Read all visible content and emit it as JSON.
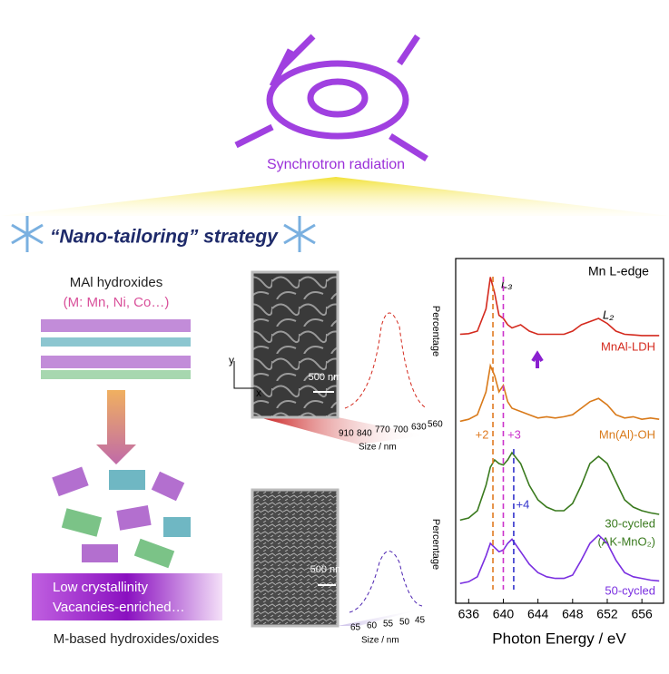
{
  "header": {
    "synchrotron": "Synchrotron radiation",
    "strategy": "“Nano-tailoring” strategy"
  },
  "left": {
    "title": "MAl hydroxides",
    "subtitle": "(M: Mn, Ni, Co…)",
    "box_lines": [
      "Low crystallinity",
      "Vacancies-enriched…"
    ],
    "caption": "M-based hydroxides/oxides"
  },
  "sem": [
    {
      "scale_bar": "500 nm",
      "y_label": "Percentage",
      "x_label": "Size / nm",
      "ticks": [
        "910",
        "840",
        "770",
        "700",
        "630",
        "560"
      ],
      "axis_y": "y",
      "axis_x": "x"
    },
    {
      "scale_bar": "500 nm",
      "y_label": "Percentage",
      "x_label": "Size / nm",
      "ticks": [
        "65",
        "60",
        "55",
        "50",
        "45"
      ]
    }
  ],
  "chart_data": {
    "type": "line",
    "title": "Mn L-edge",
    "x_label": "Photon Energy / eV",
    "xlim": [
      634.5,
      658.5
    ],
    "xticks": [
      636,
      640,
      644,
      648,
      652,
      656
    ],
    "peak_labels": [
      "L₃",
      "L₂"
    ],
    "x": [
      635,
      636,
      637,
      638,
      638.5,
      639,
      639.5,
      640,
      640.5,
      641,
      642,
      643,
      644,
      645,
      646,
      647,
      648,
      649,
      650,
      651,
      652,
      653,
      654,
      655,
      656,
      657,
      658
    ],
    "series": [
      {
        "name": "MnAl-LDH",
        "color": "#d42a1e",
        "values": [
          0.05,
          0.06,
          0.1,
          0.45,
          0.95,
          0.7,
          0.35,
          0.3,
          0.2,
          0.15,
          0.2,
          0.1,
          0.05,
          0.05,
          0.05,
          0.05,
          0.1,
          0.2,
          0.25,
          0.3,
          0.22,
          0.1,
          0.05,
          0.04,
          0.03,
          0.03,
          0.03
        ]
      },
      {
        "name": "Mn(Al)-OH",
        "color": "#d97a1a",
        "values": [
          0.05,
          0.08,
          0.15,
          0.5,
          0.9,
          0.75,
          0.5,
          0.6,
          0.35,
          0.25,
          0.2,
          0.15,
          0.1,
          0.12,
          0.1,
          0.12,
          0.15,
          0.25,
          0.35,
          0.4,
          0.3,
          0.15,
          0.1,
          0.12,
          0.08,
          0.1,
          0.08
        ]
      },
      {
        "name": "30-cycled",
        "note": "(AK-MnO₂)",
        "color": "#3a7a1e",
        "values": [
          0.02,
          0.05,
          0.15,
          0.5,
          0.75,
          0.85,
          0.8,
          0.78,
          0.85,
          0.95,
          0.8,
          0.5,
          0.3,
          0.2,
          0.15,
          0.15,
          0.25,
          0.5,
          0.8,
          0.9,
          0.8,
          0.55,
          0.3,
          0.2,
          0.15,
          0.12,
          0.1
        ]
      },
      {
        "name": "50-cycled",
        "color": "#7a2fe0",
        "values": [
          0.02,
          0.04,
          0.1,
          0.35,
          0.5,
          0.45,
          0.4,
          0.42,
          0.5,
          0.55,
          0.4,
          0.25,
          0.15,
          0.1,
          0.08,
          0.08,
          0.12,
          0.3,
          0.5,
          0.6,
          0.5,
          0.3,
          0.15,
          0.1,
          0.08,
          0.06,
          0.05
        ]
      }
    ],
    "annotations": [
      {
        "label": "+2",
        "x": 638.8,
        "color": "#e07a20"
      },
      {
        "label": "+3",
        "x": 640,
        "color": "#cc33cc"
      },
      {
        "label": "+4",
        "x": 641.2,
        "color": "#3333cc"
      }
    ]
  }
}
